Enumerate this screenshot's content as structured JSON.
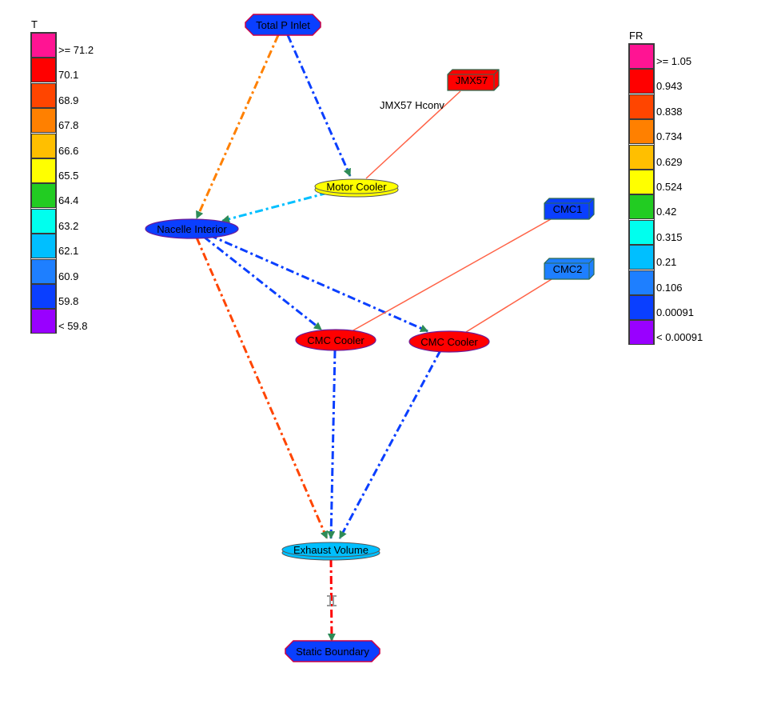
{
  "legend_t": {
    "title": "T",
    "items": [
      {
        "label": ">= 71.2",
        "color": "#ff1493"
      },
      {
        "label": "70.1",
        "color": "#ff0000"
      },
      {
        "label": "68.9",
        "color": "#ff4500"
      },
      {
        "label": "67.8",
        "color": "#ff8000"
      },
      {
        "label": "66.6",
        "color": "#ffbf00"
      },
      {
        "label": "65.5",
        "color": "#ffff00"
      },
      {
        "label": "64.4",
        "color": "#22cc22"
      },
      {
        "label": "63.2",
        "color": "#00ffee"
      },
      {
        "label": "62.1",
        "color": "#00bfff"
      },
      {
        "label": "60.9",
        "color": "#1e7fff"
      },
      {
        "label": "59.8",
        "color": "#0a3fff"
      },
      {
        "label": "< 59.8",
        "color": "#9900ff"
      }
    ]
  },
  "legend_fr": {
    "title": "FR",
    "items": [
      {
        "label": ">= 1.05",
        "color": "#ff1493"
      },
      {
        "label": "0.943",
        "color": "#ff0000"
      },
      {
        "label": "0.838",
        "color": "#ff4500"
      },
      {
        "label": "0.734",
        "color": "#ff8000"
      },
      {
        "label": "0.629",
        "color": "#ffbf00"
      },
      {
        "label": "0.524",
        "color": "#ffff00"
      },
      {
        "label": "0.42",
        "color": "#22cc22"
      },
      {
        "label": "0.315",
        "color": "#00ffee"
      },
      {
        "label": "0.21",
        "color": "#00bfff"
      },
      {
        "label": "0.106",
        "color": "#1e7fff"
      },
      {
        "label": "0.00091",
        "color": "#0a3fff"
      },
      {
        "label": "< 0.00091",
        "color": "#9900ff"
      }
    ]
  },
  "nodes": {
    "total_p_inlet": {
      "label": "Total P Inlet",
      "color": "#0a3fff",
      "shape": "octagon"
    },
    "motor_cooler": {
      "label": "Motor Cooler",
      "color": "#ffff00",
      "shape": "disk"
    },
    "nacelle_interior": {
      "label": "Nacelle Interior",
      "color": "#0a3fff",
      "shape": "ellipse"
    },
    "cmc_cooler_1": {
      "label": "CMC Cooler",
      "color": "#ff0000",
      "shape": "ellipse"
    },
    "cmc_cooler_2": {
      "label": "CMC Cooler",
      "color": "#ff0000",
      "shape": "ellipse"
    },
    "exhaust_volume": {
      "label": "Exhaust Volume",
      "color": "#00bfff",
      "shape": "disk"
    },
    "static_boundary": {
      "label": "Static Boundary",
      "color": "#0a3fff",
      "shape": "octagon"
    },
    "jmx57": {
      "label": "JMX57",
      "color": "#ff0000",
      "shape": "box"
    },
    "cmc1": {
      "label": "CMC1",
      "color": "#0a3fff",
      "shape": "box"
    },
    "cmc2": {
      "label": "CMC2",
      "color": "#1e7fff",
      "shape": "box"
    }
  },
  "edges": [
    {
      "from": "total_p_inlet",
      "to": "nacelle_interior",
      "color": "#ff8000",
      "style": "flow"
    },
    {
      "from": "total_p_inlet",
      "to": "motor_cooler",
      "color": "#0a3fff",
      "style": "flow"
    },
    {
      "from": "motor_cooler",
      "to": "nacelle_interior",
      "color": "#00bfff",
      "style": "flow"
    },
    {
      "from": "nacelle_interior",
      "to": "cmc_cooler_1",
      "color": "#0a3fff",
      "style": "flow"
    },
    {
      "from": "nacelle_interior",
      "to": "cmc_cooler_2",
      "color": "#0a3fff",
      "style": "flow"
    },
    {
      "from": "nacelle_interior",
      "to": "exhaust_volume",
      "color": "#ff4500",
      "style": "flow"
    },
    {
      "from": "cmc_cooler_1",
      "to": "exhaust_volume",
      "color": "#0a3fff",
      "style": "flow"
    },
    {
      "from": "cmc_cooler_2",
      "to": "exhaust_volume",
      "color": "#0a3fff",
      "style": "flow"
    },
    {
      "from": "exhaust_volume",
      "to": "static_boundary",
      "color": "#ff0000",
      "style": "flow"
    },
    {
      "from": "jmx57",
      "to": "motor_cooler",
      "color": "#ff6347",
      "style": "conv"
    },
    {
      "from": "cmc1",
      "to": "cmc_cooler_1",
      "color": "#ff6347",
      "style": "conv"
    },
    {
      "from": "cmc2",
      "to": "cmc_cooler_2",
      "color": "#ff6347",
      "style": "conv"
    }
  ],
  "annotations": {
    "jmx57_hconv": "JMX57 Hconv"
  }
}
